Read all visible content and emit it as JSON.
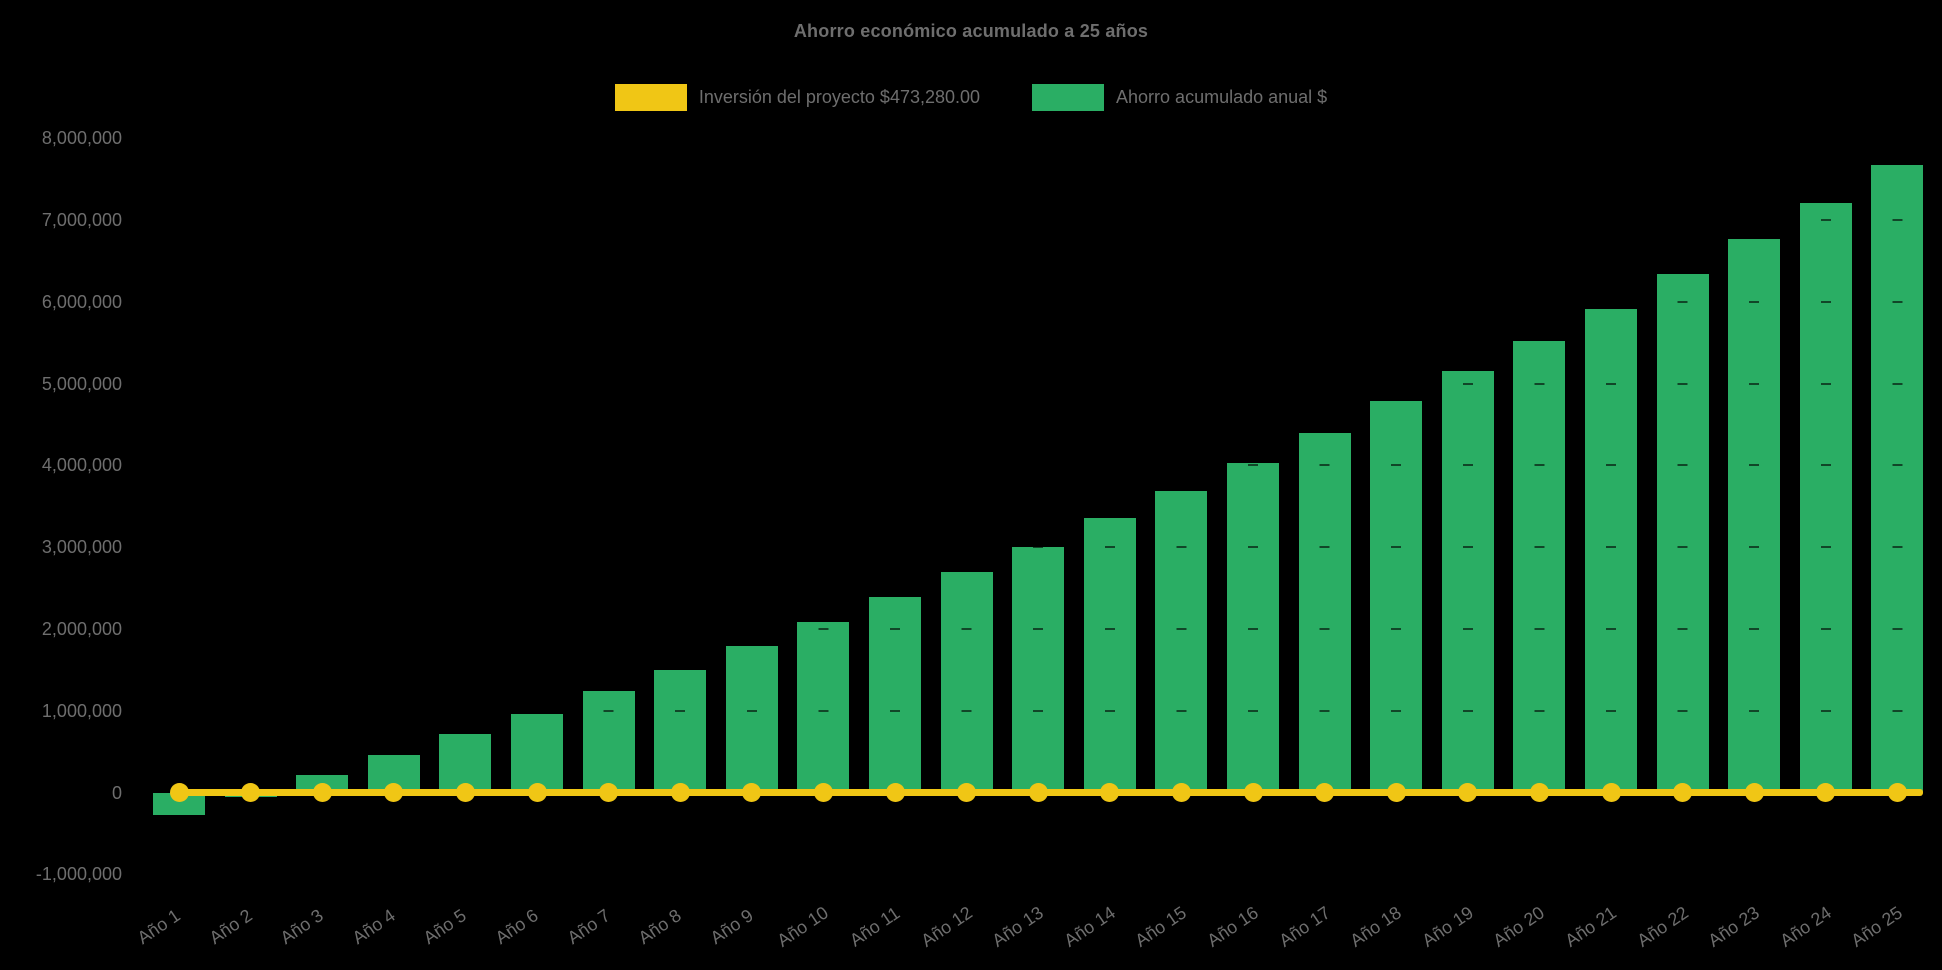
{
  "title": "Ahorro económico acumulado a 25 años",
  "legend": {
    "items": [
      {
        "label": "Inversión del proyecto $473,280.00",
        "color": "#f0c615",
        "marker": "line-swatch"
      },
      {
        "label": "Ahorro acumulado anual $",
        "color": "#2aae64",
        "marker": "bar-swatch"
      }
    ]
  },
  "colors": {
    "background": "#000000",
    "bar_green": "#2aae64",
    "line_yellow": "#f0c615",
    "text_gray": "#6e6e6e",
    "gridline_overlay": "rgba(0,0,0,0.6)"
  },
  "investment": {
    "label": "Inversión del proyecto $473,280.00",
    "amount_text": "$473,280.00"
  },
  "chart_data": {
    "type": "bar",
    "title": "Ahorro económico acumulado a 25 años",
    "categories": [
      "Año 1",
      "Año 2",
      "Año 3",
      "Año 4",
      "Año 5",
      "Año 6",
      "Año 7",
      "Año 8",
      "Año 9",
      "Año 10",
      "Año 11",
      "Año 12",
      "Año 13",
      "Año 14",
      "Año 15",
      "Año 16",
      "Año 17",
      "Año 18",
      "Año 19",
      "Año 20",
      "Año 21",
      "Año 22",
      "Año 23",
      "Año 24",
      "Año 25"
    ],
    "series": [
      {
        "name": "Ahorro acumulado anual $",
        "type": "bar",
        "color": "#2aae64",
        "values": [
          -270000,
          -50000,
          210000,
          460000,
          720000,
          960000,
          1240000,
          1500000,
          1790000,
          2090000,
          2390000,
          2690000,
          3000000,
          3350000,
          3680000,
          4030000,
          4390000,
          4780000,
          5150000,
          5520000,
          5910000,
          6340000,
          6770000,
          7210000,
          7670000
        ]
      },
      {
        "name": "Inversión del proyecto $473,280.00",
        "type": "line",
        "color": "#f0c615",
        "plotted_constant_value": 0,
        "values": [
          0,
          0,
          0,
          0,
          0,
          0,
          0,
          0,
          0,
          0,
          0,
          0,
          0,
          0,
          0,
          0,
          0,
          0,
          0,
          0,
          0,
          0,
          0,
          0,
          0
        ]
      }
    ],
    "xlabel": "",
    "ylabel": "",
    "ylim": [
      -1000000,
      8000000
    ],
    "y_axis": {
      "tick_values": [
        8000000,
        7000000,
        6000000,
        5000000,
        4000000,
        3000000,
        2000000,
        1000000,
        0,
        -1000000
      ],
      "tick_labels": [
        "8,000,000",
        "7,000,000",
        "6,000,000",
        "5,000,000",
        "4,000,000",
        "3,000,000",
        "2,000,000",
        "1,000,000",
        "0",
        "-1,000,000"
      ]
    },
    "grid": "faint dark dashes visible over bars only",
    "legend_position": "top"
  }
}
